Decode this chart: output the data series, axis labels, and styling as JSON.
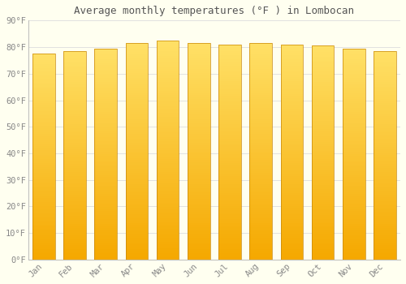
{
  "title": "Average monthly temperatures (°F ) in Lombocan",
  "categories": [
    "Jan",
    "Feb",
    "Mar",
    "Apr",
    "May",
    "Jun",
    "Jul",
    "Aug",
    "Sep",
    "Oct",
    "Nov",
    "Dec"
  ],
  "values": [
    77.5,
    78.5,
    79.5,
    81.5,
    82.5,
    81.5,
    81.0,
    81.5,
    81.0,
    80.5,
    79.5,
    78.5
  ],
  "bar_color_bottom": "#F5A800",
  "bar_color_top": "#FFE066",
  "bar_edge_color": "#C8870A",
  "background_color": "#FFFFF0",
  "grid_color": "#DDDDDD",
  "title_fontsize": 9,
  "tick_fontsize": 7.5,
  "tick_color": "#888888",
  "ylim": [
    0,
    90
  ],
  "yticks": [
    0,
    10,
    20,
    30,
    40,
    50,
    60,
    70,
    80,
    90
  ],
  "n_grad": 100
}
